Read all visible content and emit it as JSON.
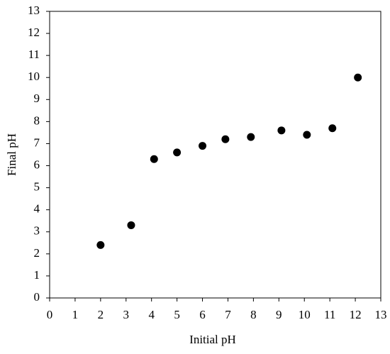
{
  "chart_data": {
    "type": "scatter",
    "x_label": "Initial pH",
    "y_label": "Final pH",
    "series": [
      {
        "color": "#000000",
        "x": [
          2.0,
          3.2,
          4.1,
          5.0,
          6.0,
          6.9,
          7.9,
          9.1,
          10.1,
          11.1,
          12.1
        ],
        "values": [
          2.4,
          3.3,
          6.3,
          6.6,
          6.9,
          7.2,
          7.3,
          7.6,
          7.4,
          7.7,
          10.0
        ]
      }
    ],
    "xlim": [
      0,
      13
    ],
    "xticks": [
      0,
      1,
      2,
      3,
      4,
      5,
      6,
      7,
      8,
      9,
      10,
      11,
      12,
      13
    ],
    "ylim": [
      0,
      13
    ],
    "yticks": [
      0,
      1,
      2,
      3,
      4,
      5,
      6,
      7,
      8,
      9,
      10,
      11,
      12,
      13
    ],
    "grid": false
  }
}
